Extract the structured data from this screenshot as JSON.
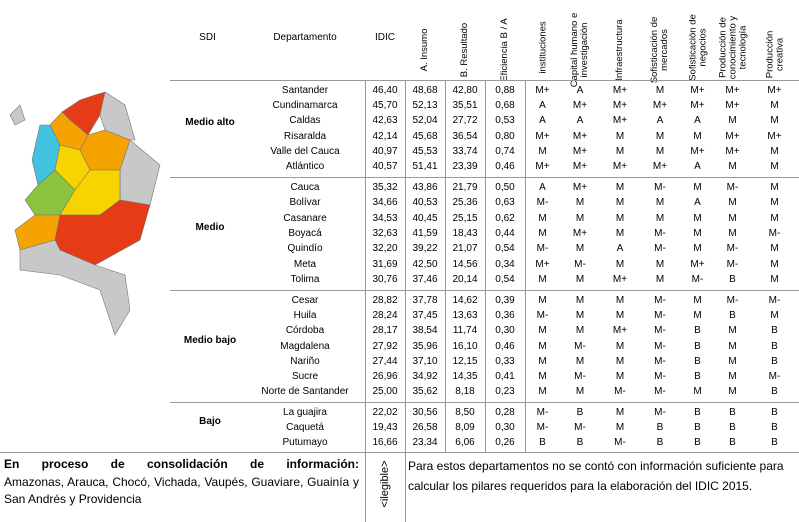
{
  "header": {
    "columns": [
      "SDI",
      "Departamento",
      "IDIC",
      "A. Insumo",
      "B. Resultado",
      "Eficiencia B / A",
      "instituciones",
      "Capital humano e investigación",
      "Infraestructura",
      "Sofisticación de mercados",
      "Sofisticación de negocios",
      "Producción de conocimiento y tecnología",
      "Producción creativa"
    ]
  },
  "groups": [
    {
      "sdi": "Medio alto",
      "rows": [
        [
          "Santander",
          "46,40",
          "48,68",
          "42,80",
          "0,88",
          "M+",
          "A",
          "M+",
          "M",
          "M+",
          "M+",
          "M+"
        ],
        [
          "Cundinamarca",
          "45,70",
          "52,13",
          "35,51",
          "0,68",
          "A",
          "M+",
          "M+",
          "M+",
          "M+",
          "M+",
          "M"
        ],
        [
          "Caldas",
          "42,63",
          "52,04",
          "27,72",
          "0,53",
          "A",
          "A",
          "M+",
          "A",
          "A",
          "M",
          "M"
        ],
        [
          "Risaralda",
          "42,14",
          "45,68",
          "36,54",
          "0,80",
          "M+",
          "M+",
          "M",
          "M",
          "M",
          "M+",
          "M+"
        ],
        [
          "Valle del Cauca",
          "40,97",
          "45,53",
          "33,74",
          "0,74",
          "M",
          "M+",
          "M",
          "M",
          "M+",
          "M+",
          "M"
        ],
        [
          "Atlántico",
          "40,57",
          "51,41",
          "23,39",
          "0,46",
          "M+",
          "M+",
          "M+",
          "M+",
          "A",
          "M",
          "M"
        ]
      ]
    },
    {
      "sdi": "Medio",
      "rows": [
        [
          "Cauca",
          "35,32",
          "43,86",
          "21,79",
          "0,50",
          "A",
          "M+",
          "M",
          "M-",
          "M",
          "M-",
          "M"
        ],
        [
          "Bolívar",
          "34,66",
          "40,53",
          "25,36",
          "0,63",
          "M-",
          "M",
          "M",
          "M",
          "A",
          "M",
          "M"
        ],
        [
          "Casanare",
          "34,53",
          "40,45",
          "25,15",
          "0,62",
          "M",
          "M",
          "M",
          "M",
          "M",
          "M",
          "M"
        ],
        [
          "Boyacá",
          "32,63",
          "41,59",
          "18,43",
          "0,44",
          "M",
          "M+",
          "M",
          "M-",
          "M",
          "M",
          "M-"
        ],
        [
          "Quindío",
          "32,20",
          "39,22",
          "21,07",
          "0,54",
          "M-",
          "M",
          "A",
          "M-",
          "M",
          "M-",
          "M"
        ],
        [
          "Meta",
          "31,69",
          "42,50",
          "14,56",
          "0,34",
          "M+",
          "M-",
          "M",
          "M",
          "M+",
          "M-",
          "M"
        ],
        [
          "Tolima",
          "30,76",
          "37,46",
          "20,14",
          "0,54",
          "M",
          "M",
          "M+",
          "M",
          "M-",
          "B",
          "M"
        ]
      ]
    },
    {
      "sdi": "Medio bajo",
      "rows": [
        [
          "Cesar",
          "28,82",
          "37,78",
          "14,62",
          "0,39",
          "M",
          "M",
          "M",
          "M-",
          "M",
          "M-",
          "M-"
        ],
        [
          "Huila",
          "28,24",
          "37,45",
          "13,63",
          "0,36",
          "M-",
          "M",
          "M",
          "M-",
          "M",
          "B",
          "M"
        ],
        [
          "Córdoba",
          "28,17",
          "38,54",
          "11,74",
          "0,30",
          "M",
          "M",
          "M+",
          "M-",
          "B",
          "M",
          "B"
        ],
        [
          "Magdalena",
          "27,92",
          "35,96",
          "16,10",
          "0,46",
          "M",
          "M-",
          "M",
          "M-",
          "B",
          "M",
          "B"
        ],
        [
          "Nariño",
          "27,44",
          "37,10",
          "12,15",
          "0,33",
          "M",
          "M",
          "M",
          "M-",
          "B",
          "M",
          "B"
        ],
        [
          "Sucre",
          "26,96",
          "34,92",
          "14,35",
          "0,41",
          "M",
          "M-",
          "M",
          "M-",
          "B",
          "M",
          "M-"
        ],
        [
          "Norte de Santander",
          "25,00",
          "35,62",
          "8,18",
          "0,23",
          "M",
          "M",
          "M-",
          "M-",
          "M",
          "M",
          "B"
        ]
      ]
    },
    {
      "sdi": "Bajo",
      "rows": [
        [
          "La guajira",
          "22,02",
          "30,56",
          "8,50",
          "0,28",
          "M-",
          "B",
          "M",
          "M-",
          "B",
          "B",
          "B"
        ],
        [
          "Caquetá",
          "19,43",
          "26,58",
          "8,09",
          "0,30",
          "M-",
          "M-",
          "M",
          "B",
          "B",
          "B",
          "B"
        ],
        [
          "Putumayo",
          "16,66",
          "23,34",
          "6,06",
          "0,26",
          "B",
          "B",
          "M-",
          "B",
          "B",
          "B",
          "B"
        ]
      ]
    }
  ],
  "note": {
    "title": "En proceso de consolidación de información:",
    "text": "Amazonas, Arauca, Chocó, Vichada, Vaupés, Guaviare, Guainía y San Andrés y Providencia",
    "mark": "<ilegible>",
    "description": "Para estos departamentos no se contó con información suficiente para calcular los pilares requeridos para la elaboración del IDIC 2015."
  }
}
